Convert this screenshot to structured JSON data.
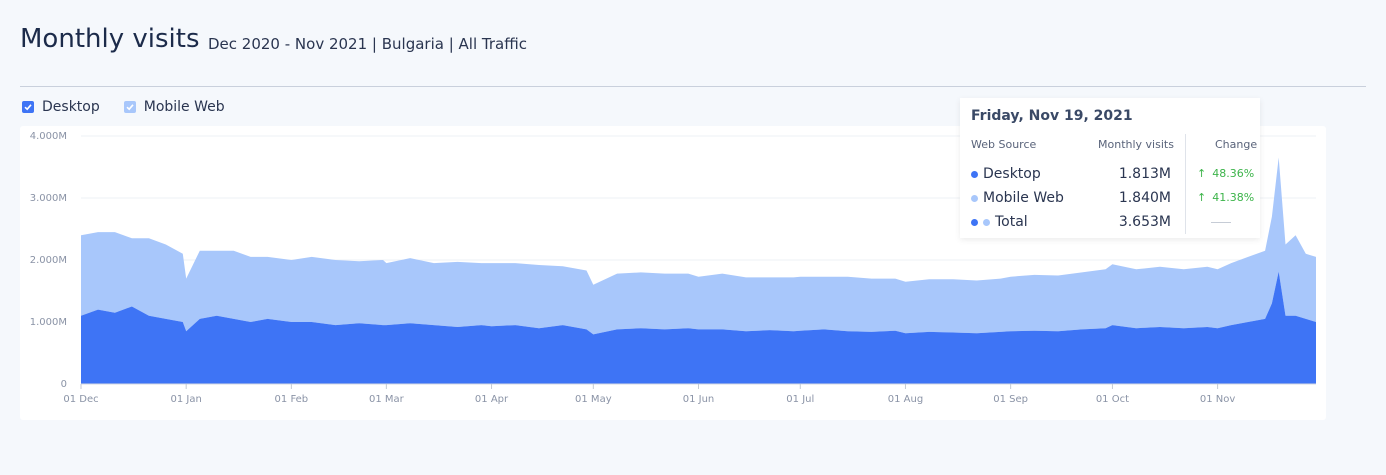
{
  "header": {
    "title": "Monthly visits",
    "subtitle": "Dec 2020 - Nov 2021 | Bulgaria | All Traffic"
  },
  "legend": {
    "items": [
      {
        "label": "Desktop",
        "checked": true,
        "color": "#3e74f5",
        "icon": "checkbox-checked-icon"
      },
      {
        "label": "Mobile Web",
        "checked": true,
        "color": "#a8c7fb",
        "icon": "checkbox-checked-icon"
      }
    ]
  },
  "tooltip": {
    "date": "Friday, Nov 19, 2021",
    "col_source": "Web Source",
    "col_visits": "Monthly visits",
    "col_change": "Change",
    "rows": [
      {
        "name": "Desktop",
        "value": "1.813M",
        "change": "48.36%",
        "trend": "up",
        "color": "#3e74f5"
      },
      {
        "name": "Mobile Web",
        "value": "1.840M",
        "change": "41.38%",
        "trend": "up",
        "color": "#a8c7fb"
      },
      {
        "name": "Total",
        "value": "3.653M",
        "change": "",
        "trend": "none",
        "color": "#3e74f5"
      }
    ]
  },
  "colors": {
    "desktop": "#3e74f5",
    "mobile": "#a8c7fb",
    "positive": "#3cb44a"
  },
  "chart_data": {
    "type": "area",
    "stacked": true,
    "y_ticks": [
      "0",
      "1.000M",
      "2.000M",
      "3.000M",
      "4.000M"
    ],
    "ylim": [
      0,
      4000000
    ],
    "x_tick_labels": [
      "01 Dec",
      "01 Jan",
      "01 Feb",
      "01 Mar",
      "01 Apr",
      "01 May",
      "01 Jun",
      "01 Jul",
      "01 Aug",
      "01 Sep",
      "01 Oct",
      "01 Nov"
    ],
    "x_start": "2020-12-01",
    "x_end": "2021-11-30",
    "grid": true,
    "series": [
      {
        "name": "Desktop",
        "color": "#3e74f5",
        "points": [
          [
            "2020-12-01",
            1100000
          ],
          [
            "2020-12-06",
            1200000
          ],
          [
            "2020-12-11",
            1150000
          ],
          [
            "2020-12-16",
            1250000
          ],
          [
            "2020-12-21",
            1100000
          ],
          [
            "2020-12-26",
            1050000
          ],
          [
            "2020-12-31",
            1000000
          ],
          [
            "2021-01-01",
            850000
          ],
          [
            "2021-01-05",
            1050000
          ],
          [
            "2021-01-10",
            1100000
          ],
          [
            "2021-01-15",
            1050000
          ],
          [
            "2021-01-20",
            1000000
          ],
          [
            "2021-01-25",
            1050000
          ],
          [
            "2021-02-01",
            1000000
          ],
          [
            "2021-02-07",
            1000000
          ],
          [
            "2021-02-14",
            950000
          ],
          [
            "2021-02-21",
            980000
          ],
          [
            "2021-02-28",
            950000
          ],
          [
            "2021-03-01",
            950000
          ],
          [
            "2021-03-08",
            980000
          ],
          [
            "2021-03-15",
            950000
          ],
          [
            "2021-03-22",
            920000
          ],
          [
            "2021-03-29",
            950000
          ],
          [
            "2021-04-01",
            930000
          ],
          [
            "2021-04-08",
            950000
          ],
          [
            "2021-04-15",
            900000
          ],
          [
            "2021-04-22",
            950000
          ],
          [
            "2021-04-29",
            880000
          ],
          [
            "2021-05-01",
            800000
          ],
          [
            "2021-05-08",
            880000
          ],
          [
            "2021-05-15",
            900000
          ],
          [
            "2021-05-22",
            880000
          ],
          [
            "2021-05-29",
            900000
          ],
          [
            "2021-06-01",
            880000
          ],
          [
            "2021-06-08",
            880000
          ],
          [
            "2021-06-15",
            850000
          ],
          [
            "2021-06-22",
            870000
          ],
          [
            "2021-06-29",
            850000
          ],
          [
            "2021-07-01",
            860000
          ],
          [
            "2021-07-08",
            880000
          ],
          [
            "2021-07-15",
            850000
          ],
          [
            "2021-07-22",
            840000
          ],
          [
            "2021-07-29",
            860000
          ],
          [
            "2021-08-01",
            820000
          ],
          [
            "2021-08-08",
            840000
          ],
          [
            "2021-08-15",
            830000
          ],
          [
            "2021-08-22",
            820000
          ],
          [
            "2021-08-29",
            840000
          ],
          [
            "2021-09-01",
            850000
          ],
          [
            "2021-09-08",
            860000
          ],
          [
            "2021-09-15",
            850000
          ],
          [
            "2021-09-22",
            880000
          ],
          [
            "2021-09-29",
            900000
          ],
          [
            "2021-10-01",
            950000
          ],
          [
            "2021-10-08",
            900000
          ],
          [
            "2021-10-15",
            920000
          ],
          [
            "2021-10-22",
            900000
          ],
          [
            "2021-10-29",
            920000
          ],
          [
            "2021-11-01",
            900000
          ],
          [
            "2021-11-05",
            950000
          ],
          [
            "2021-11-10",
            1000000
          ],
          [
            "2021-11-15",
            1050000
          ],
          [
            "2021-11-17",
            1300000
          ],
          [
            "2021-11-19",
            1813000
          ],
          [
            "2021-11-21",
            1100000
          ],
          [
            "2021-11-24",
            1100000
          ],
          [
            "2021-11-27",
            1050000
          ],
          [
            "2021-11-30",
            1000000
          ]
        ]
      },
      {
        "name": "Mobile Web",
        "color": "#a8c7fb",
        "points": [
          [
            "2020-12-01",
            1300000
          ],
          [
            "2020-12-06",
            1250000
          ],
          [
            "2020-12-11",
            1300000
          ],
          [
            "2020-12-16",
            1100000
          ],
          [
            "2020-12-21",
            1250000
          ],
          [
            "2020-12-26",
            1200000
          ],
          [
            "2020-12-31",
            1100000
          ],
          [
            "2021-01-01",
            850000
          ],
          [
            "2021-01-05",
            1100000
          ],
          [
            "2021-01-10",
            1050000
          ],
          [
            "2021-01-15",
            1100000
          ],
          [
            "2021-01-20",
            1050000
          ],
          [
            "2021-01-25",
            1000000
          ],
          [
            "2021-02-01",
            1000000
          ],
          [
            "2021-02-07",
            1050000
          ],
          [
            "2021-02-14",
            1050000
          ],
          [
            "2021-02-21",
            1000000
          ],
          [
            "2021-02-28",
            1050000
          ],
          [
            "2021-03-01",
            1000000
          ],
          [
            "2021-03-08",
            1050000
          ],
          [
            "2021-03-15",
            1000000
          ],
          [
            "2021-03-22",
            1050000
          ],
          [
            "2021-03-29",
            1000000
          ],
          [
            "2021-04-01",
            1020000
          ],
          [
            "2021-04-08",
            1000000
          ],
          [
            "2021-04-15",
            1020000
          ],
          [
            "2021-04-22",
            950000
          ],
          [
            "2021-04-29",
            950000
          ],
          [
            "2021-05-01",
            800000
          ],
          [
            "2021-05-08",
            900000
          ],
          [
            "2021-05-15",
            900000
          ],
          [
            "2021-05-22",
            900000
          ],
          [
            "2021-05-29",
            880000
          ],
          [
            "2021-06-01",
            850000
          ],
          [
            "2021-06-08",
            900000
          ],
          [
            "2021-06-15",
            870000
          ],
          [
            "2021-06-22",
            850000
          ],
          [
            "2021-06-29",
            870000
          ],
          [
            "2021-07-01",
            870000
          ],
          [
            "2021-07-08",
            850000
          ],
          [
            "2021-07-15",
            880000
          ],
          [
            "2021-07-22",
            860000
          ],
          [
            "2021-07-29",
            840000
          ],
          [
            "2021-08-01",
            830000
          ],
          [
            "2021-08-08",
            850000
          ],
          [
            "2021-08-15",
            860000
          ],
          [
            "2021-08-22",
            850000
          ],
          [
            "2021-08-29",
            860000
          ],
          [
            "2021-09-01",
            880000
          ],
          [
            "2021-09-08",
            900000
          ],
          [
            "2021-09-15",
            900000
          ],
          [
            "2021-09-22",
            920000
          ],
          [
            "2021-09-29",
            950000
          ],
          [
            "2021-10-01",
            980000
          ],
          [
            "2021-10-08",
            950000
          ],
          [
            "2021-10-15",
            970000
          ],
          [
            "2021-10-22",
            950000
          ],
          [
            "2021-10-29",
            970000
          ],
          [
            "2021-11-01",
            950000
          ],
          [
            "2021-11-05",
            1000000
          ],
          [
            "2021-11-10",
            1050000
          ],
          [
            "2021-11-15",
            1100000
          ],
          [
            "2021-11-17",
            1400000
          ],
          [
            "2021-11-19",
            1840000
          ],
          [
            "2021-11-21",
            1150000
          ],
          [
            "2021-11-24",
            1300000
          ],
          [
            "2021-11-27",
            1050000
          ],
          [
            "2021-11-30",
            1050000
          ]
        ]
      }
    ]
  }
}
